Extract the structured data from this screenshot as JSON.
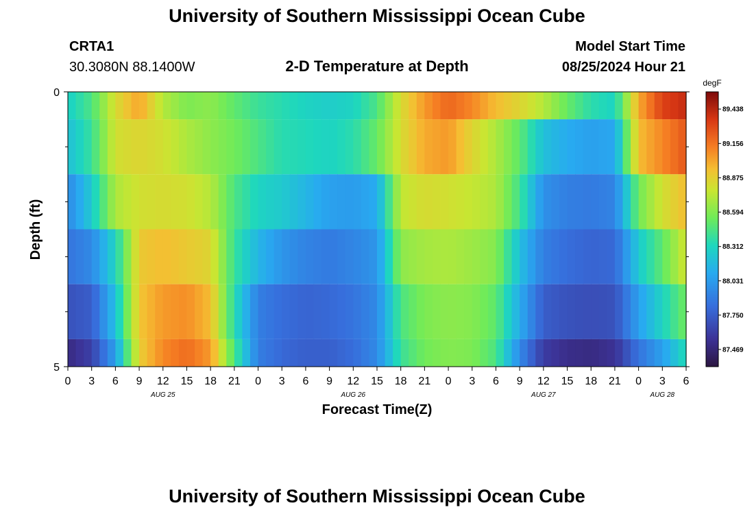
{
  "page": {
    "title": "University of Southern Mississippi Ocean Cube",
    "footer_title": "University of Southern Mississippi Ocean Cube"
  },
  "station": {
    "name": "CRTA1",
    "coords": "30.3080N  88.1400W"
  },
  "model": {
    "label": "Model Start Time",
    "start": "08/25/2024 Hour 21"
  },
  "chart_data": {
    "type": "heatmap",
    "title": "2-D Temperature at Depth",
    "xlabel": "Forecast Time(Z)",
    "ylabel": "Depth (ft)",
    "x_tick_labels": [
      "0",
      "3",
      "6",
      "9",
      "12",
      "15",
      "18",
      "21",
      "0",
      "3",
      "6",
      "9",
      "12",
      "15",
      "18",
      "21",
      "0",
      "3",
      "6",
      "9",
      "12",
      "15",
      "18",
      "21",
      "0",
      "3",
      "6"
    ],
    "x_start_hour": 0,
    "x_step_hours": 3,
    "x_range_hours": [
      0,
      78
    ],
    "day_labels": [
      {
        "text": "AUG 25",
        "hour": 12
      },
      {
        "text": "AUG 26",
        "hour": 36
      },
      {
        "text": "AUG 27",
        "hour": 60
      },
      {
        "text": "AUG 28",
        "hour": 75
      }
    ],
    "y_range": [
      0,
      5
    ],
    "y_tick_labels": [
      {
        "value": 0,
        "label": "0"
      },
      {
        "value": 5,
        "label": "5"
      }
    ],
    "y_minor_ticks": [
      1,
      2,
      3,
      4
    ],
    "colorbar": {
      "unit": "degF",
      "min": 87.328,
      "max": 89.579,
      "tick_values": [
        87.469,
        87.75,
        88.031,
        88.312,
        88.594,
        88.875,
        89.156,
        89.438
      ],
      "tick_labels": [
        "87.469",
        "87.750",
        "88.031",
        "88.312",
        "88.594",
        "88.875",
        "89.156",
        "89.438"
      ]
    },
    "series": [
      {
        "name": "Depth 0.0 ft",
        "depth": 0.0,
        "key_hours": [
          0,
          3,
          6,
          9,
          12,
          15,
          18,
          21,
          24,
          27,
          30,
          33,
          36,
          39,
          42,
          45,
          48,
          51,
          54,
          57,
          60,
          63,
          66,
          69,
          72,
          75,
          78
        ],
        "values": [
          88.28,
          88.45,
          88.82,
          89.02,
          88.72,
          88.58,
          88.62,
          88.5,
          88.4,
          88.35,
          88.3,
          88.27,
          88.3,
          88.45,
          88.82,
          89.05,
          89.2,
          89.1,
          88.95,
          88.85,
          88.72,
          88.52,
          88.36,
          88.3,
          89.0,
          89.32,
          89.4
        ]
      },
      {
        "name": "Depth 1.0 ft",
        "depth": 1.0,
        "key_hours": [
          0,
          3,
          6,
          9,
          12,
          15,
          18,
          21,
          24,
          27,
          30,
          33,
          36,
          39,
          42,
          45,
          48,
          51,
          54,
          57,
          60,
          63,
          66,
          69,
          72,
          75,
          78
        ],
        "values": [
          88.2,
          88.4,
          88.8,
          88.85,
          88.8,
          88.7,
          88.62,
          88.55,
          88.45,
          88.35,
          88.33,
          88.3,
          88.36,
          88.52,
          88.82,
          89.0,
          89.05,
          88.85,
          88.7,
          88.5,
          88.2,
          88.1,
          88.05,
          88.08,
          88.95,
          89.1,
          89.25
        ]
      },
      {
        "name": "Depth 2.0 ft",
        "depth": 2.0,
        "key_hours": [
          0,
          3,
          6,
          9,
          12,
          15,
          18,
          21,
          24,
          27,
          30,
          33,
          36,
          39,
          42,
          45,
          48,
          51,
          54,
          57,
          60,
          63,
          66,
          69,
          72,
          75,
          78
        ],
        "values": [
          87.95,
          88.25,
          88.7,
          88.8,
          88.82,
          88.8,
          88.72,
          88.45,
          88.3,
          88.25,
          88.15,
          88.05,
          88.03,
          88.1,
          88.75,
          88.82,
          88.8,
          88.76,
          88.7,
          88.42,
          87.98,
          87.9,
          87.88,
          87.92,
          88.55,
          88.8,
          88.95
        ]
      },
      {
        "name": "Depth 3.0 ft",
        "depth": 3.0,
        "key_hours": [
          0,
          3,
          6,
          9,
          12,
          15,
          18,
          21,
          24,
          27,
          30,
          33,
          36,
          39,
          42,
          45,
          48,
          51,
          54,
          57,
          60,
          63,
          66,
          69,
          72,
          75,
          78
        ],
        "values": [
          87.85,
          87.95,
          88.3,
          88.9,
          88.95,
          88.9,
          88.85,
          88.4,
          88.15,
          88.0,
          87.92,
          87.88,
          87.93,
          88.0,
          88.62,
          88.68,
          88.7,
          88.66,
          88.6,
          88.2,
          87.9,
          87.82,
          87.78,
          87.8,
          88.25,
          88.5,
          88.8
        ]
      },
      {
        "name": "Depth 4.0 ft",
        "depth": 4.0,
        "key_hours": [
          0,
          3,
          6,
          9,
          12,
          15,
          18,
          21,
          24,
          27,
          30,
          33,
          36,
          39,
          42,
          45,
          48,
          51,
          54,
          57,
          60,
          63,
          66,
          69,
          72,
          75,
          78
        ],
        "values": [
          87.7,
          87.75,
          88.2,
          88.92,
          89.05,
          89.08,
          88.95,
          88.35,
          87.9,
          87.82,
          87.78,
          87.8,
          87.85,
          87.95,
          88.45,
          88.58,
          88.62,
          88.6,
          88.5,
          88.1,
          87.75,
          87.7,
          87.68,
          87.7,
          88.05,
          88.3,
          88.55
        ]
      },
      {
        "name": "Depth 5.0 ft",
        "depth": 5.0,
        "key_hours": [
          0,
          3,
          6,
          9,
          12,
          15,
          18,
          21,
          24,
          27,
          30,
          33,
          36,
          39,
          42,
          45,
          48,
          51,
          54,
          57,
          60,
          63,
          66,
          69,
          72,
          75,
          78
        ],
        "values": [
          87.5,
          87.62,
          88.05,
          88.88,
          89.1,
          89.18,
          89.05,
          88.45,
          87.9,
          87.8,
          87.76,
          87.76,
          87.82,
          87.95,
          88.4,
          88.55,
          88.6,
          88.58,
          88.45,
          87.95,
          87.6,
          87.52,
          87.5,
          87.55,
          87.85,
          88.05,
          88.35
        ]
      }
    ]
  }
}
